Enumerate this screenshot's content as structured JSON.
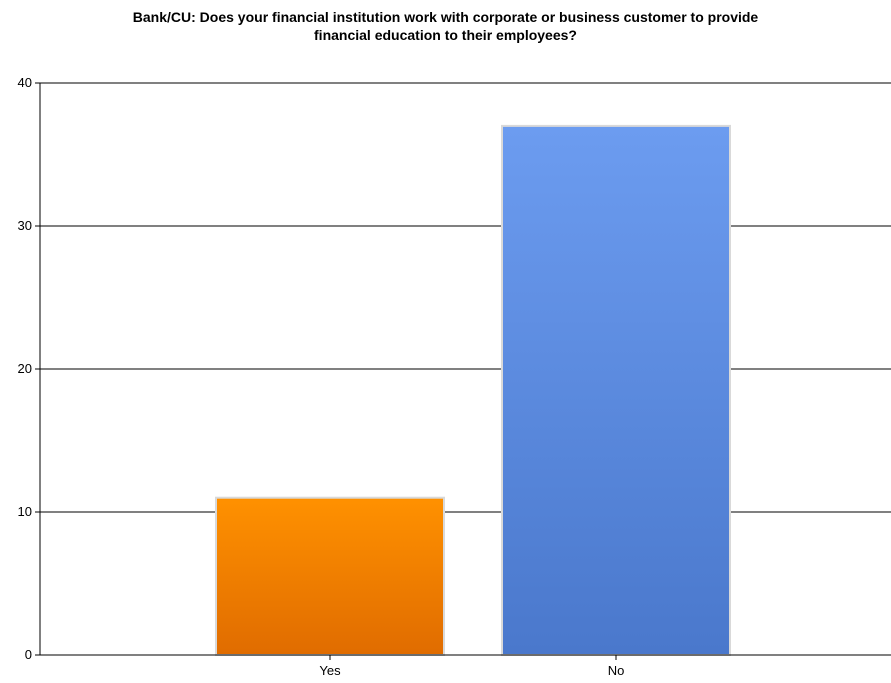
{
  "chart_data": {
    "type": "bar",
    "title_lines": [
      "Bank/CU: Does your financial institution work with corporate or business customer to provide",
      "financial education to their employees?"
    ],
    "categories": [
      "Yes",
      "No"
    ],
    "values": [
      11,
      37
    ],
    "bar_colors": [
      {
        "top": "#ff9100",
        "bottom": "#e06c00"
      },
      {
        "top": "#6c9cf0",
        "bottom": "#4a78cc"
      }
    ],
    "ylim": [
      0,
      40
    ],
    "yticks": [
      0,
      10,
      20,
      30,
      40
    ],
    "grid": true,
    "xlabel": "",
    "ylabel": ""
  }
}
